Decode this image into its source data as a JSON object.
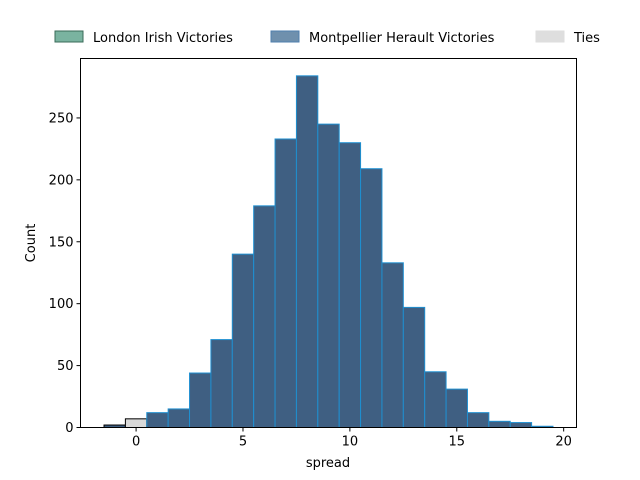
{
  "chart_data": {
    "type": "bar",
    "xlabel": "spread",
    "ylabel": "Count",
    "xlim": [
      -2.6,
      20.6
    ],
    "ylim": [
      0,
      298
    ],
    "xticks": [
      0,
      5,
      10,
      15,
      20
    ],
    "yticks": [
      0,
      50,
      100,
      150,
      200,
      250
    ],
    "bin_width": 1,
    "legend_position": "top",
    "colors": {
      "london_irish": "#7ab3a0",
      "montpellier": "#6f90ad",
      "ties": "#d9d9d9",
      "bar_fill": "#3f5f82",
      "bar_edge": "#1f8fd0",
      "loss_edge": "#000000"
    },
    "series": [
      {
        "name": "London Irish Victories",
        "bins": [
          {
            "x0": -1.5,
            "x1": -0.5,
            "count": 2
          }
        ]
      },
      {
        "name": "Ties",
        "bins": [
          {
            "x0": -0.5,
            "x1": 0.5,
            "count": 7
          }
        ]
      },
      {
        "name": "Montpellier Herault Victories",
        "bins": [
          {
            "x0": 0.5,
            "x1": 1.5,
            "count": 12
          },
          {
            "x0": 1.5,
            "x1": 2.5,
            "count": 15
          },
          {
            "x0": 2.5,
            "x1": 3.5,
            "count": 44
          },
          {
            "x0": 3.5,
            "x1": 4.5,
            "count": 71
          },
          {
            "x0": 4.5,
            "x1": 5.5,
            "count": 140
          },
          {
            "x0": 5.5,
            "x1": 6.5,
            "count": 179
          },
          {
            "x0": 6.5,
            "x1": 7.5,
            "count": 233
          },
          {
            "x0": 7.5,
            "x1": 8.5,
            "count": 284
          },
          {
            "x0": 8.5,
            "x1": 9.5,
            "count": 245
          },
          {
            "x0": 9.5,
            "x1": 10.5,
            "count": 230
          },
          {
            "x0": 10.5,
            "x1": 11.5,
            "count": 209
          },
          {
            "x0": 11.5,
            "x1": 12.5,
            "count": 133
          },
          {
            "x0": 12.5,
            "x1": 13.5,
            "count": 97
          },
          {
            "x0": 13.5,
            "x1": 14.5,
            "count": 45
          },
          {
            "x0": 14.5,
            "x1": 15.5,
            "count": 31
          },
          {
            "x0": 15.5,
            "x1": 16.5,
            "count": 12
          },
          {
            "x0": 16.5,
            "x1": 17.5,
            "count": 5
          },
          {
            "x0": 17.5,
            "x1": 18.5,
            "count": 4
          },
          {
            "x0": 18.5,
            "x1": 19.5,
            "count": 1
          }
        ]
      }
    ]
  }
}
